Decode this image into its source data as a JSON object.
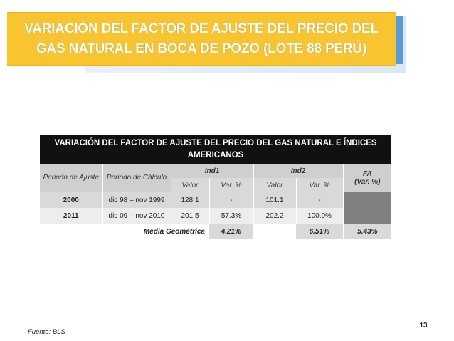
{
  "slide": {
    "title_line1": "VARIACIÓN DEL FACTOR DE AJUSTE DEL PRECIO DEL",
    "title_line2": "GAS NATURAL EN BOCA DE POZO (LOTE 88 PERÚ)",
    "page_number": "13",
    "source": "Fuente: BLS"
  },
  "table": {
    "title": "VARIACIÓN DEL FACTOR DE AJUSTE DEL PRECIO DEL GAS NATURAL E ÍNDICES AMERICANOS",
    "headers": {
      "periodo_ajuste": "Periodo de Ajuste",
      "periodo_calculo": "Periodo de Cálculo",
      "ind1": "Ind1",
      "ind2": "Ind2",
      "fa": "FA",
      "fa_unit": "(Var. %)",
      "valor": "Valor",
      "var": "Var. %"
    },
    "rows": [
      {
        "ajuste": "2000",
        "calculo": "dic 98 – nov 1999",
        "ind1_valor": "128.1",
        "ind1_var": "-",
        "ind2_valor": "101.1",
        "ind2_var": "-",
        "fa": ""
      },
      {
        "ajuste": "2011",
        "calculo": "dic 09 – nov 2010",
        "ind1_valor": "201.5",
        "ind1_var": "57.3%",
        "ind2_valor": "202.2",
        "ind2_var": "100.0%",
        "fa": ""
      }
    ],
    "footer": {
      "label": "Media Geométrica",
      "ind1": "4.21%",
      "ind2": "6.51%",
      "fa": "5.43%"
    }
  },
  "colors": {
    "banner": "#f8c531",
    "banner_accent": "#5b9bd5",
    "table_title_bg": "#111111",
    "header_bg": "#cfcfcf",
    "fa_cell_bg": "#808080"
  }
}
